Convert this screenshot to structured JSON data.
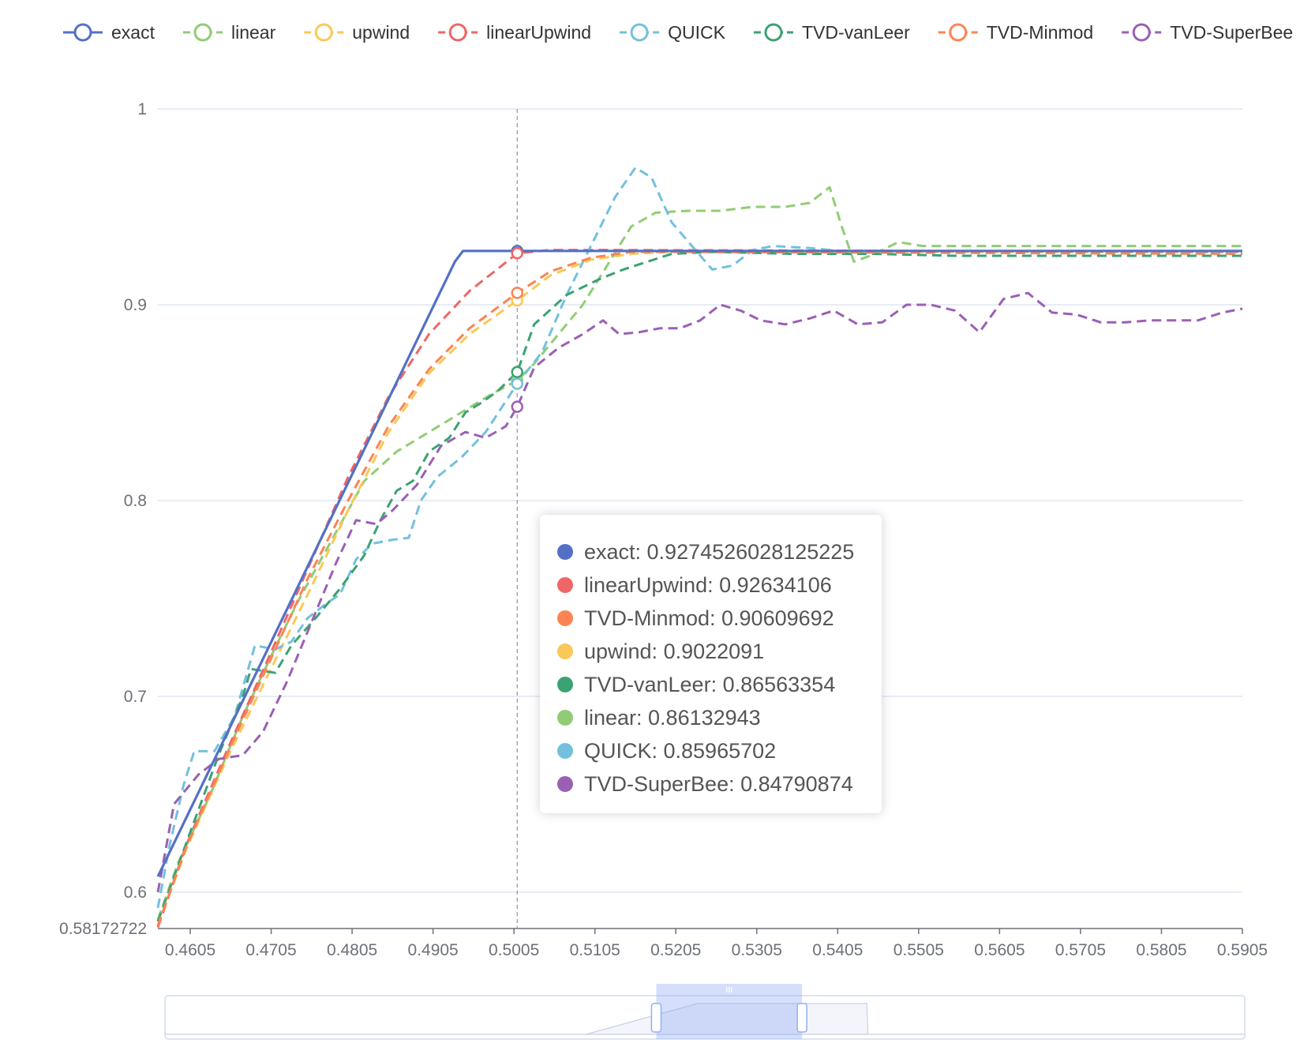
{
  "chart_data": {
    "type": "line",
    "title": "",
    "xlabel": "",
    "ylabel": "",
    "x_ticks": [
      "0.4605",
      "0.4705",
      "0.4805",
      "0.4905",
      "0.5005",
      "0.5105",
      "0.5205",
      "0.5305",
      "0.5405",
      "0.5505",
      "0.5605",
      "0.5705",
      "0.5805",
      "0.5905"
    ],
    "y_ticks": [
      "0.6",
      "0.7",
      "0.8",
      "0.9",
      "1"
    ],
    "y_min_label": "0.58172722",
    "xlim": [
      0.4565,
      0.5905
    ],
    "ylim": [
      0.58172722,
      1.0
    ],
    "grid": "horizontal",
    "legend_position": "top",
    "cursor_x": 0.5009,
    "series": [
      {
        "name": "exact",
        "color": "#5470c6",
        "dashed": false,
        "highlight": 0.9274526028125225,
        "x": [
          0.4565,
          0.4932,
          0.4942,
          0.5905
        ],
        "y": [
          0.608,
          0.922,
          0.9275,
          0.9275
        ]
      },
      {
        "name": "linear",
        "color": "#91cc75",
        "dashed": true,
        "highlight": 0.86132943,
        "x": [
          0.4565,
          0.459,
          0.463,
          0.467,
          0.471,
          0.474,
          0.478,
          0.482,
          0.486,
          0.49,
          0.494,
          0.498,
          0.5009,
          0.503,
          0.506,
          0.509,
          0.512,
          0.515,
          0.518,
          0.522,
          0.526,
          0.53,
          0.534,
          0.537,
          0.5395,
          0.541,
          0.5425,
          0.5445,
          0.548,
          0.551,
          0.5905
        ],
        "y": [
          0.586,
          0.615,
          0.65,
          0.69,
          0.725,
          0.75,
          0.78,
          0.81,
          0.825,
          0.835,
          0.845,
          0.855,
          0.8613,
          0.87,
          0.885,
          0.9,
          0.92,
          0.94,
          0.947,
          0.948,
          0.948,
          0.95,
          0.95,
          0.952,
          0.96,
          0.94,
          0.922,
          0.925,
          0.932,
          0.93,
          0.93
        ]
      },
      {
        "name": "upwind",
        "color": "#fac858",
        "dashed": true,
        "highlight": 0.9022091,
        "x": [
          0.4565,
          0.46,
          0.465,
          0.47,
          0.475,
          0.48,
          0.485,
          0.49,
          0.495,
          0.5009,
          0.505,
          0.51,
          0.515,
          0.52,
          0.53,
          0.5905
        ],
        "y": [
          0.583,
          0.622,
          0.668,
          0.71,
          0.752,
          0.795,
          0.835,
          0.865,
          0.885,
          0.9022,
          0.915,
          0.923,
          0.926,
          0.927,
          0.927,
          0.927
        ]
      },
      {
        "name": "linearUpwind",
        "color": "#ee6666",
        "dashed": true,
        "highlight": 0.92634106,
        "x": [
          0.4565,
          0.46,
          0.465,
          0.47,
          0.475,
          0.48,
          0.485,
          0.49,
          0.495,
          0.499,
          0.5009,
          0.505,
          0.51,
          0.5905
        ],
        "y": [
          0.582,
          0.624,
          0.672,
          0.718,
          0.765,
          0.812,
          0.853,
          0.885,
          0.907,
          0.92,
          0.9263,
          0.928,
          0.928,
          0.927
        ]
      },
      {
        "name": "QUICK",
        "color": "#73c0de",
        "dashed": true,
        "highlight": 0.85965702,
        "x": [
          0.4565,
          0.458,
          0.4597,
          0.461,
          0.4635,
          0.466,
          0.4685,
          0.471,
          0.473,
          0.475,
          0.4775,
          0.479,
          0.481,
          0.483,
          0.4855,
          0.4875,
          0.489,
          0.491,
          0.494,
          0.497,
          0.5009,
          0.504,
          0.507,
          0.51,
          0.513,
          0.5155,
          0.5175,
          0.52,
          0.5225,
          0.525,
          0.5275,
          0.53,
          0.5325,
          0.537,
          0.542,
          0.5905
        ],
        "y": [
          0.592,
          0.625,
          0.655,
          0.672,
          0.672,
          0.69,
          0.726,
          0.724,
          0.728,
          0.74,
          0.748,
          0.752,
          0.77,
          0.778,
          0.78,
          0.781,
          0.8,
          0.812,
          0.822,
          0.835,
          0.8597,
          0.876,
          0.905,
          0.93,
          0.955,
          0.97,
          0.965,
          0.942,
          0.93,
          0.918,
          0.92,
          0.928,
          0.93,
          0.929,
          0.927,
          0.927
        ]
      },
      {
        "name": "TVD-vanLeer",
        "color": "#3ba272",
        "dashed": true,
        "highlight": 0.86563354,
        "x": [
          0.4565,
          0.46,
          0.464,
          0.467,
          0.468,
          0.471,
          0.473,
          0.476,
          0.479,
          0.482,
          0.484,
          0.486,
          0.488,
          0.49,
          0.4925,
          0.4945,
          0.4965,
          0.4985,
          0.5009,
          0.503,
          0.507,
          0.511,
          0.514,
          0.517,
          0.52,
          0.525,
          0.535,
          0.545,
          0.555,
          0.5905
        ],
        "y": [
          0.585,
          0.625,
          0.67,
          0.7,
          0.714,
          0.712,
          0.726,
          0.74,
          0.755,
          0.772,
          0.79,
          0.805,
          0.81,
          0.825,
          0.832,
          0.845,
          0.85,
          0.856,
          0.8656,
          0.89,
          0.905,
          0.913,
          0.918,
          0.922,
          0.926,
          0.927,
          0.926,
          0.926,
          0.925,
          0.925
        ]
      },
      {
        "name": "TVD-Minmod",
        "color": "#fc8452",
        "dashed": true,
        "highlight": 0.90609692,
        "x": [
          0.4565,
          0.46,
          0.465,
          0.47,
          0.475,
          0.48,
          0.485,
          0.49,
          0.495,
          0.5009,
          0.505,
          0.51,
          0.515,
          0.52,
          0.5905
        ],
        "y": [
          0.583,
          0.623,
          0.67,
          0.715,
          0.76,
          0.8,
          0.838,
          0.867,
          0.888,
          0.9061,
          0.917,
          0.924,
          0.927,
          0.927,
          0.926
        ]
      },
      {
        "name": "TVD-SuperBee",
        "color": "#9a60b4",
        "dashed": true,
        "highlight": 0.84790874,
        "x": [
          0.4565,
          0.4585,
          0.4615,
          0.464,
          0.467,
          0.4695,
          0.4725,
          0.4755,
          0.4785,
          0.481,
          0.4835,
          0.4855,
          0.4885,
          0.4915,
          0.4945,
          0.497,
          0.4995,
          0.5009,
          0.503,
          0.506,
          0.509,
          0.5115,
          0.5135,
          0.516,
          0.5185,
          0.521,
          0.5235,
          0.526,
          0.5285,
          0.531,
          0.534,
          0.537,
          0.54,
          0.543,
          0.546,
          0.549,
          0.552,
          0.555,
          0.558,
          0.561,
          0.564,
          0.567,
          0.57,
          0.573,
          0.576,
          0.579,
          0.582,
          0.585,
          0.588,
          0.5905
        ],
        "y": [
          0.6,
          0.645,
          0.66,
          0.668,
          0.67,
          0.682,
          0.708,
          0.738,
          0.768,
          0.79,
          0.788,
          0.795,
          0.808,
          0.828,
          0.835,
          0.832,
          0.838,
          0.8479,
          0.868,
          0.878,
          0.885,
          0.892,
          0.885,
          0.886,
          0.888,
          0.888,
          0.892,
          0.9,
          0.897,
          0.892,
          0.89,
          0.893,
          0.897,
          0.89,
          0.891,
          0.9,
          0.9,
          0.897,
          0.886,
          0.903,
          0.906,
          0.896,
          0.895,
          0.891,
          0.891,
          0.892,
          0.892,
          0.892,
          0.896,
          0.898
        ]
      }
    ],
    "tooltip_order": [
      "exact",
      "linearUpwind",
      "TVD-Minmod",
      "upwind",
      "TVD-vanLeer",
      "linear",
      "QUICK",
      "TVD-SuperBee"
    ]
  },
  "tooltip": {
    "rows": [
      {
        "text": "exact: 0.9274526028125225",
        "color": "#5470c6"
      },
      {
        "text": "linearUpwind: 0.92634106",
        "color": "#ee6666"
      },
      {
        "text": "TVD-Minmod: 0.90609692",
        "color": "#fc8452"
      },
      {
        "text": "upwind: 0.9022091",
        "color": "#fac858"
      },
      {
        "text": "TVD-vanLeer: 0.86563354",
        "color": "#3ba272"
      },
      {
        "text": "linear: 0.86132943",
        "color": "#91cc75"
      },
      {
        "text": "QUICK: 0.85965702",
        "color": "#73c0de"
      },
      {
        "text": "TVD-SuperBee: 0.84790874",
        "color": "#9a60b4"
      }
    ]
  },
  "data_zoom": {
    "start_fraction": 0.455,
    "end_fraction": 0.59
  }
}
